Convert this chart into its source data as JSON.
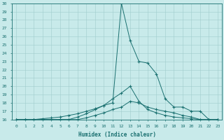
{
  "xlabel": "Humidex (Indice chaleur)",
  "background_color": "#c8eaea",
  "line_color": "#1a7070",
  "grid_color": "#a0cccc",
  "xlim": [
    -0.5,
    23.5
  ],
  "ylim": [
    16,
    30
  ],
  "xtick_labels": [
    "0",
    "1",
    "2",
    "3",
    "4",
    "5",
    "6",
    "7",
    "8",
    "9",
    "10",
    "11",
    "12",
    "13",
    "14",
    "15",
    "16",
    "17",
    "18",
    "19",
    "20",
    "21",
    "22",
    "23"
  ],
  "ytick_labels": [
    "16",
    "17",
    "18",
    "19",
    "20",
    "21",
    "22",
    "23",
    "24",
    "25",
    "26",
    "27",
    "28",
    "29",
    "30"
  ],
  "series": [
    [
      16,
      16,
      16,
      16,
      16,
      16,
      16,
      16.3,
      16.7,
      17.2,
      17.7,
      18.5,
      19.2,
      20.0,
      18.2,
      17.2,
      16.8,
      16.5,
      16.3,
      16.2,
      16.1,
      16.0,
      16.0,
      16.0
    ],
    [
      16,
      16,
      16,
      16.1,
      16.2,
      16.3,
      16.5,
      16.7,
      17.0,
      17.3,
      17.7,
      18.0,
      30.0,
      25.5,
      23.0,
      22.8,
      21.5,
      18.5,
      17.5,
      17.5,
      17.0,
      17.0,
      16.0,
      16.0
    ],
    [
      16,
      16,
      16,
      16,
      16,
      16,
      16,
      16,
      16.2,
      16.5,
      16.8,
      17.2,
      17.5,
      18.2,
      18.0,
      17.5,
      17.2,
      17.0,
      16.8,
      16.5,
      16.3,
      16.0,
      16.0,
      16.0
    ]
  ]
}
